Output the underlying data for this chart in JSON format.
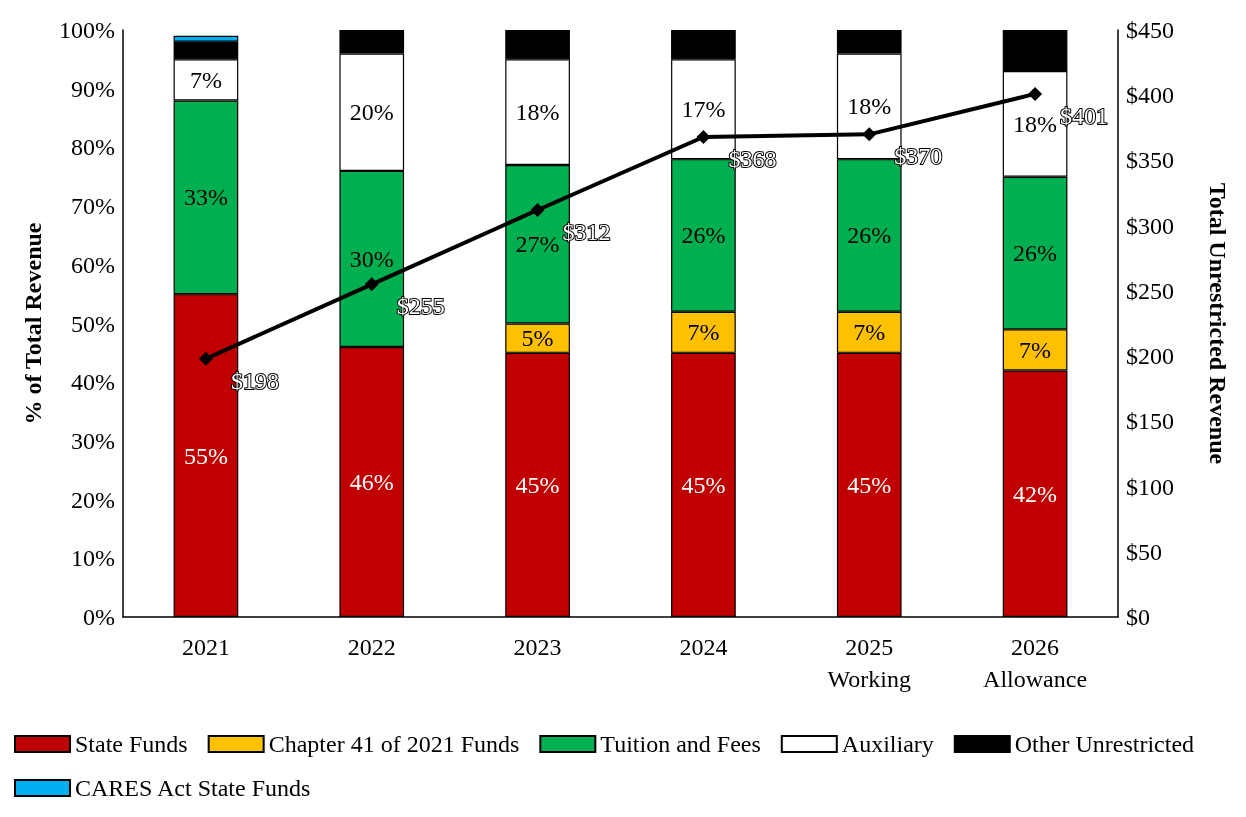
{
  "chart_data": {
    "type": "bar",
    "stacked": true,
    "ylabel": "% of Total Revenue",
    "y2label": "Total Unrestricted Revenue",
    "categories": [
      "2021",
      "2022",
      "2023",
      "2024",
      "2025\nWorking",
      "2026\nAllowance"
    ],
    "series": [
      {
        "name": "State Funds",
        "color": "#c00000",
        "values": [
          55,
          46,
          45,
          45,
          45,
          42
        ],
        "value_labels": [
          "55%",
          "46%",
          "45%",
          "45%",
          "45%",
          "42%"
        ]
      },
      {
        "name": "Chapter 41 of 2021 Funds",
        "color": "#ffc000",
        "values": [
          null,
          null,
          5,
          7,
          7,
          7
        ],
        "value_labels": [
          null,
          null,
          "5%",
          "7%",
          "7%",
          "7%"
        ]
      },
      {
        "name": "Tuition and Fees",
        "color": "#00b050",
        "values": [
          33,
          30,
          27,
          26,
          26,
          26
        ],
        "value_labels": [
          "33%",
          "30%",
          "27%",
          "26%",
          "26%",
          "26%"
        ]
      },
      {
        "name": "Auxiliary",
        "color": "#ffffff",
        "values": [
          7,
          20,
          18,
          17,
          18,
          18
        ],
        "value_labels": [
          "7%",
          "20%",
          "18%",
          "17%",
          "18%",
          "18%"
        ]
      },
      {
        "name": "Other Unrestricted",
        "color": "#000000",
        "values": [
          3,
          4,
          5,
          5,
          4,
          7
        ]
      },
      {
        "name": "CARES Act State Funds",
        "color": "#00b0f0",
        "values": [
          1,
          null,
          null,
          null,
          null,
          null
        ]
      },
      {
        "type": "line",
        "axis": "y2",
        "color": "#000000",
        "marker": "diamond",
        "values": [
          198,
          255,
          312,
          368,
          370,
          401
        ],
        "value_labels": [
          "$198",
          "$255",
          "$312",
          "$368",
          "$370",
          "$401"
        ]
      }
    ],
    "ylim": [
      0,
      100
    ],
    "yticks": [
      {
        "value": 0,
        "label": "0%"
      },
      {
        "value": 10,
        "label": "10%"
      },
      {
        "value": 20,
        "label": "20%"
      },
      {
        "value": 30,
        "label": "30%"
      },
      {
        "value": 40,
        "label": "40%"
      },
      {
        "value": 50,
        "label": "50%"
      },
      {
        "value": 60,
        "label": "60%"
      },
      {
        "value": 70,
        "label": "70%"
      },
      {
        "value": 80,
        "label": "80%"
      },
      {
        "value": 90,
        "label": "90%"
      },
      {
        "value": 100,
        "label": "100%"
      }
    ],
    "y2lim": [
      0,
      450
    ],
    "y2ticks": [
      {
        "value": 0,
        "label": "$0"
      },
      {
        "value": 50,
        "label": "$50"
      },
      {
        "value": 100,
        "label": "$100"
      },
      {
        "value": 150,
        "label": "$150"
      },
      {
        "value": 200,
        "label": "$200"
      },
      {
        "value": 250,
        "label": "$250"
      },
      {
        "value": 300,
        "label": "$300"
      },
      {
        "value": 350,
        "label": "$350"
      },
      {
        "value": 400,
        "label": "$400"
      },
      {
        "value": 450,
        "label": "$450"
      }
    ],
    "grid": false,
    "legend": "bottom"
  }
}
